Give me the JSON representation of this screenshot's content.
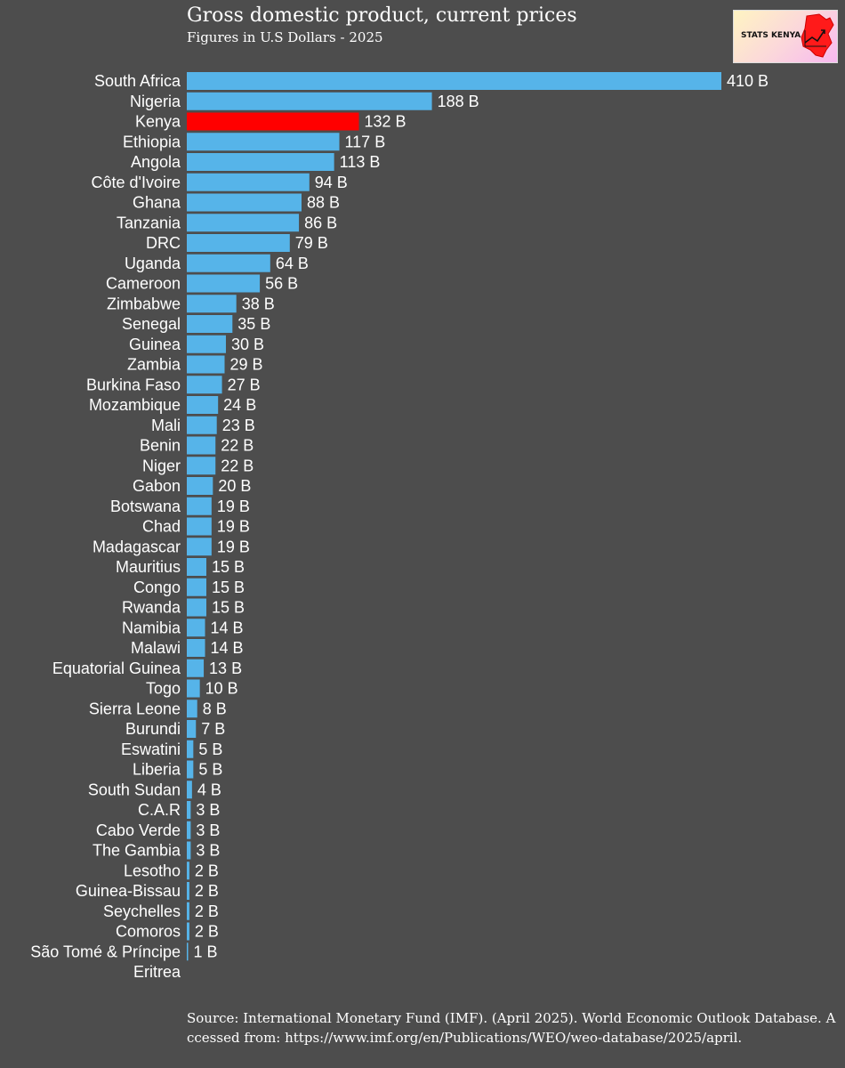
{
  "chart_data": {
    "type": "bar",
    "orientation": "horizontal",
    "title": "Gross domestic product, current prices",
    "subtitle": "Figures in U.S Dollars - 2025",
    "unit_suffix": " B",
    "categories": [
      "South Africa",
      "Nigeria",
      "Kenya",
      "Ethiopia",
      "Angola",
      "Côte d'Ivoire",
      "Ghana",
      "Tanzania",
      "DRC",
      "Uganda",
      "Cameroon",
      "Zimbabwe",
      "Senegal",
      "Guinea",
      "Zambia",
      "Burkina Faso",
      "Mozambique",
      "Mali",
      "Benin",
      "Niger",
      "Gabon",
      "Botswana",
      "Chad",
      "Madagascar",
      "Mauritius",
      "Congo",
      "Rwanda",
      "Namibia",
      "Malawi",
      "Equatorial Guinea",
      "Togo",
      "Sierra Leone",
      "Burundi",
      "Eswatini",
      "Liberia",
      "South Sudan",
      "C.A.R",
      "Cabo Verde",
      "The Gambia",
      "Lesotho",
      "Guinea-Bissau",
      "Seychelles",
      "Comoros",
      "São Tomé & Príncipe",
      "Eritrea"
    ],
    "values": [
      410,
      188,
      132,
      117,
      113,
      94,
      88,
      86,
      79,
      64,
      56,
      38,
      35,
      30,
      29,
      27,
      24,
      23,
      22,
      22,
      20,
      19,
      19,
      19,
      15,
      15,
      15,
      14,
      14,
      13,
      10,
      8,
      7,
      5,
      5,
      4,
      3,
      3,
      3,
      2,
      2,
      2,
      2,
      1,
      null
    ],
    "highlight": "Kenya",
    "xlim": [
      0,
      410
    ],
    "grid": false,
    "legend": "none",
    "colors": {
      "bar": "#56b4e9",
      "highlight": "#ff0000",
      "background": "#4d4d4d",
      "text": "#ffffff"
    }
  },
  "logo": {
    "text": "STATS KENYA"
  },
  "source": "Source: International Monetary Fund (IMF). (April 2025). World Economic Outlook Database. Accessed from: https://www.imf.org/en/Publications/WEO/weo-database/2025/april."
}
